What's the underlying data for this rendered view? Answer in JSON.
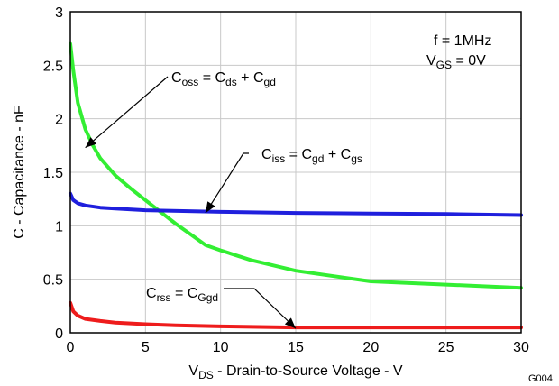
{
  "chart_data": {
    "type": "line",
    "title": "",
    "x_range": [
      0,
      30
    ],
    "y_range": [
      0,
      3
    ],
    "x_ticks": [
      "0",
      "5",
      "10",
      "15",
      "20",
      "25",
      "30"
    ],
    "y_ticks": [
      "0",
      "0.5",
      "1",
      "1.5",
      "2",
      "2.5",
      "3"
    ],
    "xlabel": {
      "main": "V",
      "sub": "DS",
      "rest": " - Drain-to-Source Voltage - V"
    },
    "ylabel": "C - Capacitance - nF",
    "grid": true,
    "conditions": {
      "freq": "f = 1MHz",
      "vgs_main": "V",
      "vgs_sub": "GS",
      "vgs_rest": " = 0V"
    },
    "figure_id": "G004",
    "series": [
      {
        "key": "coss",
        "color": "#33ee33",
        "x": [
          0,
          0.2,
          0.5,
          1,
          1.5,
          2,
          3,
          4,
          5,
          6,
          7,
          8,
          9,
          10,
          12,
          15,
          20,
          25,
          30
        ],
        "y": [
          2.7,
          2.45,
          2.15,
          1.9,
          1.75,
          1.63,
          1.47,
          1.35,
          1.24,
          1.13,
          1.02,
          0.92,
          0.82,
          0.77,
          0.68,
          0.58,
          0.48,
          0.45,
          0.42
        ]
      },
      {
        "key": "ciss",
        "color": "#1f1fdd",
        "x": [
          0,
          0.2,
          0.5,
          1,
          2,
          3,
          5,
          10,
          15,
          20,
          25,
          30
        ],
        "y": [
          1.3,
          1.24,
          1.21,
          1.19,
          1.17,
          1.16,
          1.145,
          1.13,
          1.12,
          1.115,
          1.11,
          1.1
        ]
      },
      {
        "key": "crss",
        "color": "#ee1c1c",
        "x": [
          0,
          0.2,
          0.5,
          1,
          2,
          3,
          5,
          7,
          10,
          15,
          20,
          25,
          30
        ],
        "y": [
          0.28,
          0.2,
          0.16,
          0.13,
          0.11,
          0.095,
          0.08,
          0.07,
          0.06,
          0.05,
          0.05,
          0.05,
          0.05
        ]
      }
    ],
    "annotations": [
      {
        "key": "coss",
        "parts": [
          {
            "t": "C"
          },
          {
            "s": "oss"
          },
          {
            "t": " = C"
          },
          {
            "s": "ds"
          },
          {
            "t": " + C"
          },
          {
            "s": "gd"
          }
        ],
        "target": [
          1,
          1.73
        ]
      },
      {
        "key": "ciss",
        "parts": [
          {
            "t": "C"
          },
          {
            "s": "iss"
          },
          {
            "t": " = C"
          },
          {
            "s": "gd"
          },
          {
            "t": " + C"
          },
          {
            "s": "gs"
          }
        ],
        "target": [
          9,
          1.12
        ]
      },
      {
        "key": "crss",
        "parts": [
          {
            "t": "C"
          },
          {
            "s": "rss"
          },
          {
            "t": " = C"
          },
          {
            "s": "Ggd"
          }
        ],
        "target": [
          15,
          0.04
        ]
      }
    ]
  }
}
